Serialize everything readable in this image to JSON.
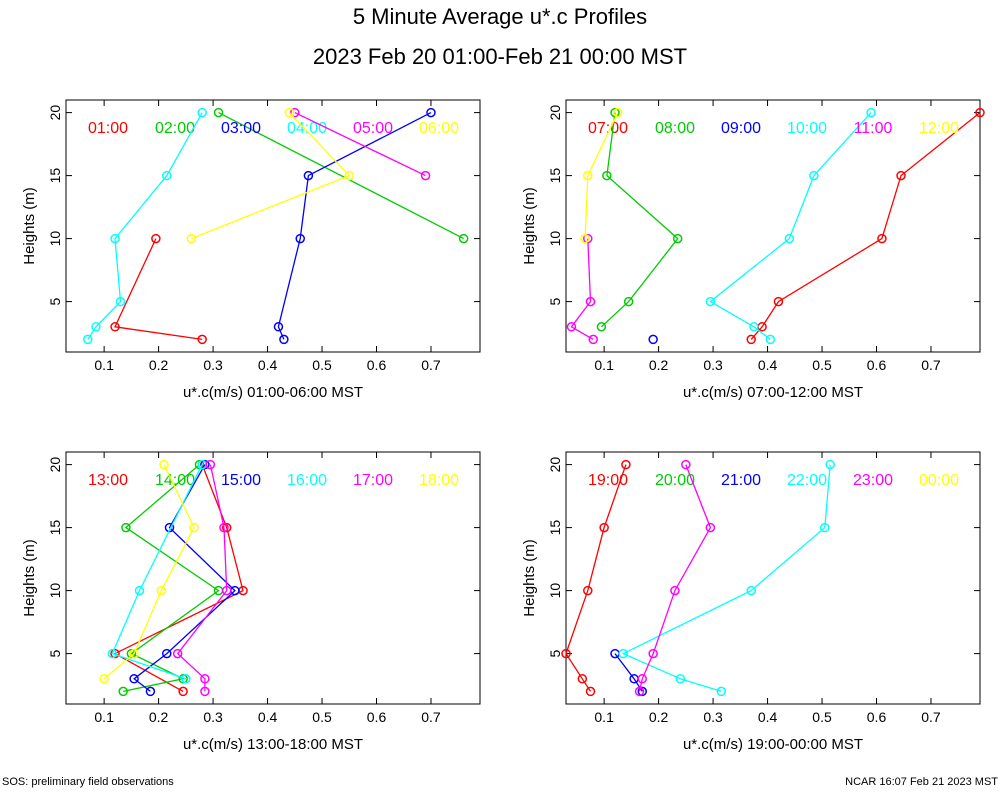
{
  "header": {
    "title": "5 Minute Average u*.c Profiles",
    "subtitle": "2023 Feb 20 01:00-Feb 21 00:00 MST"
  },
  "footer": {
    "left": "SOS: preliminary field observations",
    "right": "NCAR 16:07 Feb 21 2023 MST"
  },
  "colors": [
    "#ff0000",
    "#00cc00",
    "#0000ff",
    "#00ffff",
    "#ff00ff",
    "#ffff00"
  ],
  "chart_data": [
    {
      "type": "line",
      "xlabel": "u*.c(m/s) 01:00-06:00 MST",
      "ylabel": "Heights (m)",
      "xlim": [
        0.03,
        0.79
      ],
      "ylim": [
        1,
        21
      ],
      "xticks": [
        "0.1",
        "0.2",
        "0.3",
        "0.4",
        "0.5",
        "0.6",
        "0.7"
      ],
      "yticks": [
        "5",
        "10",
        "15",
        "20"
      ],
      "series": [
        {
          "name": "01:00",
          "heights": [
            2,
            3,
            10
          ],
          "values": [
            0.28,
            0.12,
            0.195
          ]
        },
        {
          "name": "02:00",
          "heights": [
            10,
            20
          ],
          "values": [
            0.76,
            0.31
          ]
        },
        {
          "name": "03:00",
          "heights": [
            2,
            3,
            10,
            15,
            20
          ],
          "values": [
            0.43,
            0.42,
            0.46,
            0.475,
            0.7
          ]
        },
        {
          "name": "04:00",
          "heights": [
            2,
            3,
            5,
            10,
            15,
            20
          ],
          "values": [
            0.07,
            0.085,
            0.13,
            0.12,
            0.215,
            0.28
          ]
        },
        {
          "name": "05:00",
          "heights": [
            15,
            20
          ],
          "values": [
            0.69,
            0.45
          ]
        },
        {
          "name": "06:00",
          "heights": [
            10,
            15,
            20
          ],
          "values": [
            0.26,
            0.55,
            0.44
          ]
        }
      ]
    },
    {
      "type": "line",
      "xlabel": "u*.c(m/s) 07:00-12:00 MST",
      "ylabel": "Heights (m)",
      "xlim": [
        0.03,
        0.79
      ],
      "ylim": [
        1,
        21
      ],
      "xticks": [
        "0.1",
        "0.2",
        "0.3",
        "0.4",
        "0.5",
        "0.6",
        "0.7"
      ],
      "yticks": [
        "5",
        "10",
        "15",
        "20"
      ],
      "series": [
        {
          "name": "07:00",
          "heights": [
            2,
            3,
            5,
            10,
            15,
            20
          ],
          "values": [
            0.37,
            0.39,
            0.42,
            0.61,
            0.645,
            0.79
          ]
        },
        {
          "name": "08:00",
          "heights": [
            3,
            5,
            10,
            15,
            20
          ],
          "values": [
            0.095,
            0.145,
            0.235,
            0.105,
            0.12
          ]
        },
        {
          "name": "09:00",
          "heights": [
            2
          ],
          "values": [
            0.19
          ]
        },
        {
          "name": "10:00",
          "heights": [
            2,
            3,
            5,
            10,
            15,
            20
          ],
          "values": [
            0.405,
            0.375,
            0.295,
            0.44,
            0.485,
            0.59
          ]
        },
        {
          "name": "11:00",
          "heights": [
            2,
            3,
            5,
            10
          ],
          "values": [
            0.08,
            0.04,
            0.075,
            0.07
          ]
        },
        {
          "name": "12:00",
          "heights": [
            10,
            15,
            20
          ],
          "values": [
            0.065,
            0.07,
            0.125
          ]
        }
      ]
    },
    {
      "type": "line",
      "xlabel": "u*.c(m/s) 13:00-18:00 MST",
      "ylabel": "Heights (m)",
      "xlim": [
        0.03,
        0.79
      ],
      "ylim": [
        1,
        21
      ],
      "xticks": [
        "0.1",
        "0.2",
        "0.3",
        "0.4",
        "0.5",
        "0.6",
        "0.7"
      ],
      "yticks": [
        "5",
        "10",
        "15",
        "20"
      ],
      "series": [
        {
          "name": "13:00",
          "heights": [
            2,
            5,
            10,
            15,
            20
          ],
          "values": [
            0.245,
            0.12,
            0.355,
            0.325,
            0.28
          ]
        },
        {
          "name": "14:00",
          "heights": [
            2,
            3,
            5,
            10,
            15,
            20
          ],
          "values": [
            0.135,
            0.245,
            0.15,
            0.31,
            0.14,
            0.275
          ]
        },
        {
          "name": "15:00",
          "heights": [
            2,
            3,
            5,
            10,
            15,
            20
          ],
          "values": [
            0.185,
            0.155,
            0.215,
            0.34,
            0.22,
            0.285
          ]
        },
        {
          "name": "16:00",
          "heights": [
            3,
            5,
            10,
            20
          ],
          "values": [
            0.25,
            0.115,
            0.165,
            0.28
          ]
        },
        {
          "name": "17:00",
          "heights": [
            2,
            3,
            5,
            10,
            15,
            20
          ],
          "values": [
            0.285,
            0.285,
            0.235,
            0.325,
            0.32,
            0.295
          ]
        },
        {
          "name": "18:00",
          "heights": [
            3,
            5,
            10,
            15,
            20
          ],
          "values": [
            0.1,
            0.155,
            0.205,
            0.265,
            0.21
          ]
        }
      ]
    },
    {
      "type": "line",
      "xlabel": "u*.c(m/s) 19:00-00:00 MST",
      "ylabel": "Heights (m)",
      "xlim": [
        0.03,
        0.79
      ],
      "ylim": [
        1,
        21
      ],
      "xticks": [
        "0.1",
        "0.2",
        "0.3",
        "0.4",
        "0.5",
        "0.6",
        "0.7"
      ],
      "yticks": [
        "5",
        "10",
        "15",
        "20"
      ],
      "series": [
        {
          "name": "19:00",
          "heights": [
            2,
            3,
            5,
            10,
            15,
            20
          ],
          "values": [
            0.075,
            0.06,
            0.03,
            0.07,
            0.1,
            0.14
          ]
        },
        {
          "name": "20:00",
          "heights": [],
          "values": []
        },
        {
          "name": "21:00",
          "heights": [
            2,
            3,
            5
          ],
          "values": [
            0.17,
            0.155,
            0.12
          ]
        },
        {
          "name": "22:00",
          "heights": [
            2,
            3,
            5,
            10,
            15,
            20
          ],
          "values": [
            0.315,
            0.24,
            0.135,
            0.37,
            0.505,
            0.515
          ]
        },
        {
          "name": "23:00",
          "heights": [
            2,
            3,
            5,
            10,
            15,
            20
          ],
          "values": [
            0.165,
            0.17,
            0.19,
            0.23,
            0.295,
            0.25
          ]
        },
        {
          "name": "00:00",
          "heights": [],
          "values": []
        }
      ]
    }
  ]
}
